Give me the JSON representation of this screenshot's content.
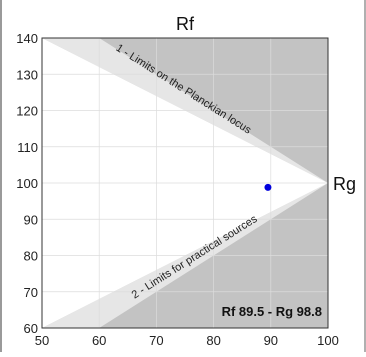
{
  "chart_data": {
    "type": "area",
    "title": "Rf",
    "right_axis_label": "Rg",
    "xlim": [
      50,
      100
    ],
    "ylim": [
      60,
      140
    ],
    "x_ticks": [
      50,
      60,
      70,
      80,
      90,
      100
    ],
    "y_ticks": [
      60,
      70,
      80,
      90,
      100,
      110,
      120,
      130,
      140
    ],
    "grid": true,
    "background_color": "#c3c3c3",
    "regions": [
      {
        "label": "1 - Limits on the Planckian locus",
        "color": "#e6e6e6",
        "points": [
          [
            50,
            140
          ],
          [
            60,
            140
          ],
          [
            100,
            100
          ]
        ]
      },
      {
        "label": "2 - Limits for practical sources",
        "color": "#e6e6e6",
        "points": [
          [
            50,
            60
          ],
          [
            60,
            60
          ],
          [
            100,
            100
          ]
        ]
      },
      {
        "label": "",
        "color": "#ffffff",
        "points": [
          [
            50,
            140
          ],
          [
            100,
            100
          ],
          [
            50,
            60
          ]
        ]
      }
    ],
    "point": {
      "x": 89.5,
      "y": 98.8,
      "color": "#0000dd"
    },
    "annotation": "Rf 89.5 - Rg 98.8"
  }
}
